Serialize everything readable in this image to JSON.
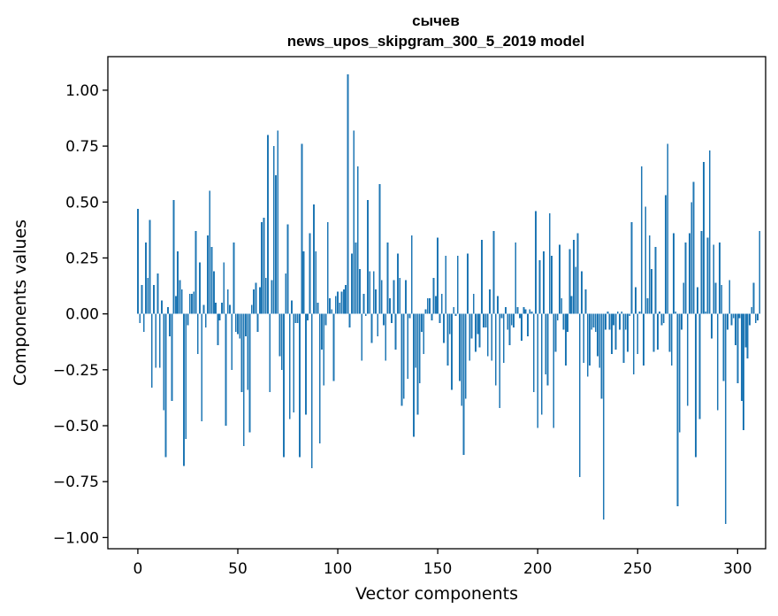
{
  "chart_data": {
    "type": "bar",
    "title_line1": "сычев",
    "title_line2": "news_upos_skipgram_300_5_2019 model",
    "xlabel": "Vector components",
    "ylabel": "Components values",
    "xlim": [
      -15,
      314
    ],
    "ylim": [
      -1.05,
      1.15
    ],
    "xticks": [
      0,
      50,
      100,
      150,
      200,
      250,
      300
    ],
    "xtick_labels": [
      "0",
      "50",
      "100",
      "150",
      "200",
      "250",
      "300"
    ],
    "yticks": [
      -1.0,
      -0.75,
      -0.5,
      -0.25,
      0.0,
      0.25,
      0.5,
      0.75,
      1.0
    ],
    "ytick_labels": [
      "−1.00",
      "−0.75",
      "−0.50",
      "−0.25",
      "0.00",
      "0.25",
      "0.50",
      "0.75",
      "1.00"
    ],
    "bar_color": "#1f77b4",
    "values": [
      0.47,
      -0.04,
      0.13,
      -0.08,
      0.32,
      0.16,
      0.42,
      -0.33,
      0.13,
      -0.24,
      0.18,
      -0.24,
      0.06,
      -0.43,
      -0.64,
      0.03,
      -0.1,
      -0.39,
      0.51,
      0.08,
      0.28,
      0.15,
      0.11,
      -0.68,
      -0.56,
      -0.05,
      0.09,
      0.09,
      0.1,
      0.37,
      -0.18,
      0.23,
      -0.48,
      0.04,
      -0.06,
      0.35,
      0.55,
      0.3,
      0.19,
      0.05,
      -0.14,
      -0.03,
      0.05,
      0.23,
      -0.5,
      0.11,
      0.04,
      -0.25,
      0.32,
      -0.08,
      -0.09,
      -0.11,
      -0.35,
      -0.59,
      -0.1,
      -0.34,
      -0.53,
      0.04,
      0.11,
      0.14,
      -0.08,
      0.12,
      0.41,
      0.43,
      0.16,
      0.8,
      -0.35,
      0.15,
      0.75,
      0.62,
      0.82,
      -0.19,
      -0.25,
      -0.64,
      0.18,
      0.4,
      -0.47,
      0.06,
      -0.44,
      -0.04,
      -0.04,
      -0.64,
      0.76,
      0.28,
      -0.45,
      -0.03,
      0.36,
      -0.69,
      0.49,
      0.28,
      0.05,
      -0.58,
      -0.16,
      -0.32,
      -0.05,
      0.41,
      0.07,
      0.02,
      -0.3,
      0.08,
      0.1,
      0.05,
      0.1,
      0.11,
      0.13,
      1.07,
      -0.06,
      0.27,
      0.82,
      0.32,
      0.66,
      0.2,
      -0.21,
      0.09,
      -0.01,
      0.51,
      0.19,
      -0.13,
      0.19,
      0.11,
      -0.1,
      0.58,
      0.15,
      -0.05,
      -0.21,
      0.32,
      0.07,
      -0.04,
      0.15,
      -0.16,
      0.27,
      0.16,
      -0.41,
      -0.38,
      0.15,
      -0.29,
      -0.02,
      0.35,
      -0.55,
      -0.24,
      -0.45,
      -0.31,
      -0.08,
      -0.18,
      0.02,
      0.07,
      0.07,
      -0.03,
      0.16,
      0.08,
      0.34,
      -0.04,
      0.09,
      -0.13,
      0.26,
      -0.23,
      -0.09,
      -0.34,
      0.03,
      -0.01,
      0.26,
      -0.3,
      -0.41,
      -0.63,
      -0.38,
      0.27,
      -0.21,
      -0.11,
      0.09,
      -0.17,
      -0.09,
      -0.15,
      0.33,
      -0.06,
      -0.06,
      -0.19,
      0.11,
      -0.21,
      0.37,
      -0.32,
      0.08,
      -0.42,
      -0.02,
      -0.22,
      0.03,
      -0.07,
      -0.14,
      -0.05,
      -0.06,
      0.32,
      0.03,
      -0.02,
      -0.12,
      0.03,
      0.02,
      -0.1,
      0.02,
      0.01,
      -0.35,
      0.46,
      -0.51,
      0.24,
      -0.45,
      0.28,
      -0.27,
      -0.32,
      0.45,
      0.26,
      -0.51,
      -0.17,
      -0.03,
      0.31,
      0.07,
      -0.07,
      -0.23,
      -0.08,
      0.29,
      0.08,
      0.33,
      0.21,
      0.36,
      -0.73,
      0.19,
      -0.22,
      0.11,
      -0.28,
      -0.23,
      -0.07,
      -0.06,
      -0.08,
      -0.19,
      -0.24,
      -0.38,
      -0.92,
      -0.07,
      0.01,
      -0.07,
      -0.18,
      -0.05,
      -0.16,
      0.01,
      -0.07,
      0.01,
      -0.22,
      -0.07,
      -0.17,
      -0.01,
      0.41,
      -0.27,
      0.12,
      -0.18,
      0.01,
      0.66,
      -0.23,
      0.48,
      0.07,
      0.35,
      0.2,
      -0.17,
      0.3,
      -0.16,
      0.01,
      -0.05,
      -0.04,
      0.53,
      0.76,
      -0.17,
      -0.23,
      0.36,
      0.01,
      -0.86,
      -0.53,
      -0.07,
      0.14,
      0.32,
      -0.41,
      0.36,
      0.5,
      0.59,
      -0.64,
      0.12,
      -0.47,
      0.37,
      0.68,
      0.01,
      0.34,
      0.73,
      -0.11,
      0.31,
      0.14,
      -0.43,
      0.32,
      0.13,
      -0.3,
      -0.94,
      -0.07,
      0.15,
      -0.05,
      -0.02,
      -0.14,
      -0.31,
      -0.02,
      -0.39,
      -0.52,
      -0.15,
      -0.2,
      -0.05,
      0.03,
      0.14,
      -0.04,
      -0.03,
      0.37
    ]
  }
}
